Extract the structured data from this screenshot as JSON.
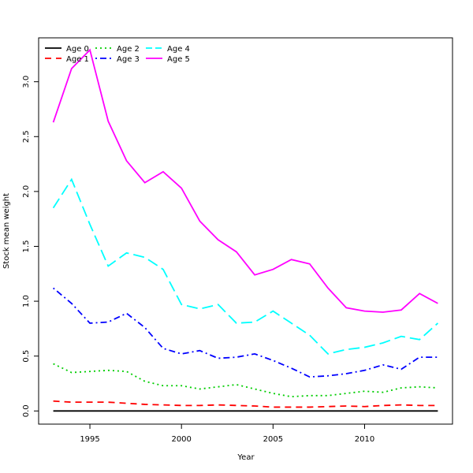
{
  "chart_data": {
    "type": "line",
    "title": "",
    "xlabel": "Year",
    "ylabel": "Stock mean weight",
    "xlim": [
      1992.2,
      2014.8
    ],
    "ylim": [
      -0.12,
      3.4
    ],
    "x_ticks": [
      1995,
      2000,
      2005,
      2010
    ],
    "y_ticks": [
      0.0,
      0.5,
      1.0,
      1.5,
      2.0,
      2.5,
      3.0
    ],
    "x_tick_labels": [
      "1995",
      "2000",
      "2005",
      "2010"
    ],
    "y_tick_labels": [
      "0.0",
      "0.5",
      "1.0",
      "1.5",
      "2.0",
      "2.5",
      "3.0"
    ],
    "grid": false,
    "legend_position": "top-left",
    "x": [
      1993,
      1994,
      1995,
      1996,
      1997,
      1998,
      1999,
      2000,
      2001,
      2002,
      2003,
      2004,
      2005,
      2006,
      2007,
      2008,
      2009,
      2010,
      2011,
      2012,
      2013,
      2014
    ],
    "series": [
      {
        "name": "Age 0",
        "color": "#000000",
        "dash": "solid",
        "values": [
          0.0,
          0.0,
          0.0,
          0.0,
          0.0,
          0.0,
          0.0,
          0.0,
          0.0,
          0.0,
          0.0,
          0.0,
          0.0,
          0.0,
          0.0,
          0.0,
          0.0,
          0.0,
          0.0,
          0.0,
          0.0,
          0.0
        ]
      },
      {
        "name": "Age 1",
        "color": "#ff0000",
        "dash": "dashed",
        "values": [
          0.09,
          0.08,
          0.08,
          0.08,
          0.07,
          0.06,
          0.055,
          0.05,
          0.05,
          0.055,
          0.05,
          0.045,
          0.035,
          0.035,
          0.035,
          0.04,
          0.045,
          0.04,
          0.05,
          0.055,
          0.05,
          0.05
        ]
      },
      {
        "name": "Age 2",
        "color": "#00cd00",
        "dash": "dotted",
        "values": [
          0.43,
          0.35,
          0.36,
          0.37,
          0.36,
          0.27,
          0.23,
          0.23,
          0.2,
          0.22,
          0.24,
          0.2,
          0.16,
          0.13,
          0.14,
          0.14,
          0.16,
          0.18,
          0.17,
          0.21,
          0.22,
          0.21
        ]
      },
      {
        "name": "Age 3",
        "color": "#0000ff",
        "dash": "dotdash",
        "values": [
          1.12,
          0.98,
          0.8,
          0.81,
          0.89,
          0.76,
          0.57,
          0.52,
          0.55,
          0.48,
          0.49,
          0.52,
          0.46,
          0.39,
          0.31,
          0.32,
          0.34,
          0.37,
          0.42,
          0.38,
          0.49,
          0.49
        ]
      },
      {
        "name": "Age 4",
        "color": "#00ffff",
        "dash": "longdash",
        "values": [
          1.85,
          2.11,
          1.7,
          1.32,
          1.44,
          1.4,
          1.29,
          0.97,
          0.93,
          0.97,
          0.8,
          0.81,
          0.91,
          0.8,
          0.69,
          0.52,
          0.56,
          0.58,
          0.62,
          0.68,
          0.65,
          0.8
        ]
      },
      {
        "name": "Age 5",
        "color": "#ff00ff",
        "dash": "solid",
        "values": [
          2.63,
          3.12,
          3.29,
          2.64,
          2.28,
          2.08,
          2.18,
          2.03,
          1.73,
          1.56,
          1.45,
          1.24,
          1.29,
          1.38,
          1.34,
          1.12,
          0.94,
          0.91,
          0.9,
          0.92,
          1.07,
          0.98
        ]
      }
    ]
  }
}
